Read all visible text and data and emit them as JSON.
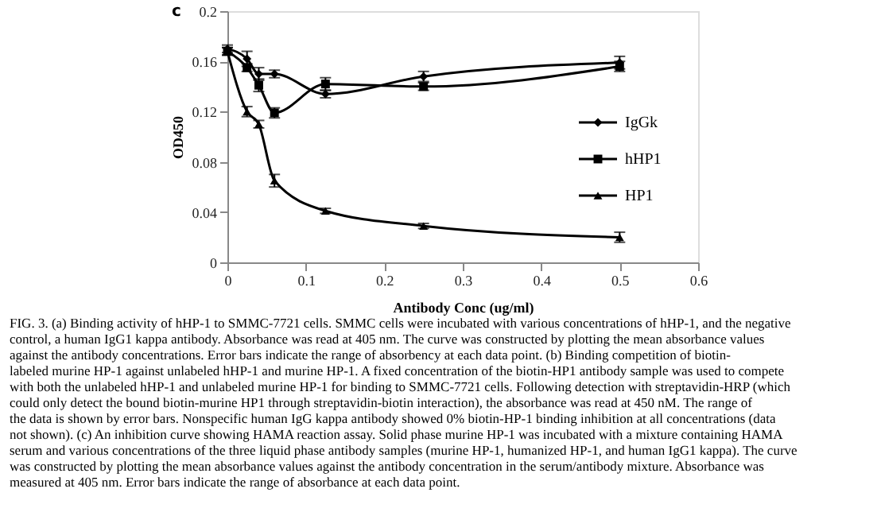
{
  "chart_data": {
    "type": "line",
    "xlabel": "Antibody Conc (ug/ml)",
    "ylabel": "OD450",
    "x": [
      0,
      0.025,
      0.04,
      0.06,
      0.125,
      0.25,
      0.5
    ],
    "series": [
      {
        "name": "IgGk",
        "color": "#000000",
        "marker": "diamond",
        "values": [
          0.17,
          0.162,
          0.15,
          0.15,
          0.134,
          0.148,
          0.159
        ],
        "errors": [
          0.003,
          0.006,
          0.005,
          0.003,
          0.003,
          0.004,
          0.005
        ]
      },
      {
        "name": "hHP1",
        "color": "#000000",
        "marker": "square",
        "values": [
          0.168,
          0.155,
          0.141,
          0.119,
          0.142,
          0.14,
          0.156
        ],
        "errors": [
          0.003,
          0.003,
          0.005,
          0.004,
          0.005,
          0.003,
          0.004
        ]
      },
      {
        "name": "HP1",
        "color": "#000000",
        "marker": "triangle",
        "values": [
          0.168,
          0.12,
          0.11,
          0.065,
          0.041,
          0.029,
          0.02
        ],
        "errors": [
          0.003,
          0.004,
          0.003,
          0.005,
          0.002,
          0.002,
          0.004
        ]
      }
    ],
    "xlim": [
      0,
      0.6
    ],
    "xticks": [
      {
        "value": 0,
        "label": "0"
      },
      0.1,
      0.2,
      0.3,
      0.4,
      0.5,
      0.6
    ],
    "ylim": [
      0,
      0.2
    ],
    "yticks": [
      {
        "value": 0,
        "label": "0"
      },
      0.04,
      0.08,
      0.12,
      0.16,
      {
        "value": 0.2,
        "label": "0.2"
      }
    ],
    "grid": false,
    "legend": "right",
    "line_style": "solid",
    "annotations": [
      "c",
      "FIG. 3. (a) Binding activity of hHP-1 to SMMC-7721 cells. SMMC cells were incubated with various concentrations of hHP-1, and the negative control, a human IgG1 kappa antibody. Absorbance was read at 405 nm. The curve was constructed by plotting the mean absorbance values against the antibody concentrations. Error bars indicate the range of absorbency at each data point. (b) Binding competition of biotin-labeled murine HP-1 against unlabeled hHP-1 and murine HP-1. A fixed concentration of the biotin-HP1 antibody sample was used to compete with both the unlabeled hHP-1 and unlabeled murine HP-1 for binding to SMMC-7721 cells. Following detection with streptavidin-HRP (which could only detect the bound biotin-murine HP1 through streptavidin-biotin interaction), the absorbance was read at 450 nM. The range of the data is shown by error bars. Nonspecific human IgG kappa antibody showed 0% biotin-HP-1 binding inhibition at all concentrations (data not shown). (c) An inhibition curve showing HAMA reaction assay. Solid phase murine HP-1 was incubated with a mixture containing HAMA serum and various concentrations of the three liquid phase antibody samples (murine HP-1, humanized HP-1, and human IgG1 kappa). The curve was constructed by plotting the mean absorbance values against the antibody concentration in the serum/antibody mixture. Absorbance was measured at 405 nm. Error bars indicate the range of absorbance at each data point."
    ]
  }
}
